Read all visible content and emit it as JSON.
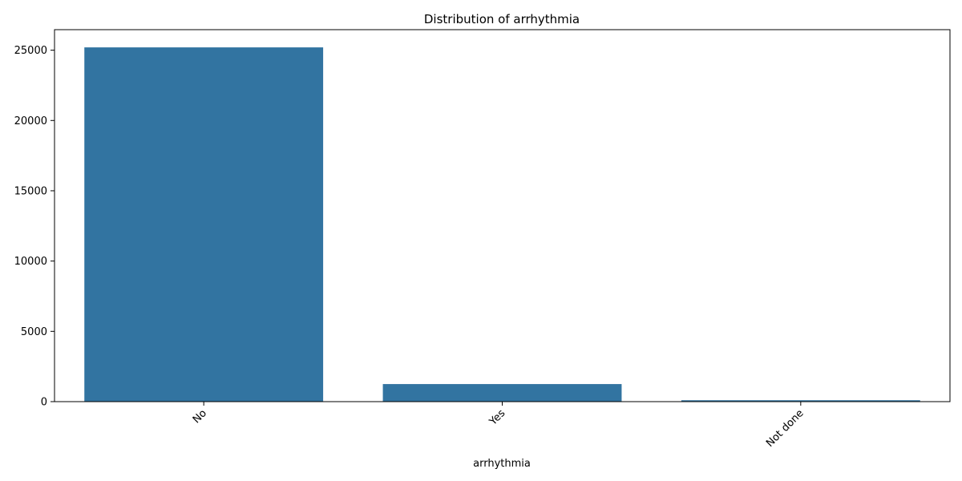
{
  "chart_data": {
    "type": "bar",
    "title": "Distribution of arrhythmia",
    "xlabel": "arrhythmia",
    "ylabel": "",
    "categories": [
      "No",
      "Yes",
      "Not done"
    ],
    "values": [
      25200,
      1250,
      100
    ],
    "ylim": [
      0,
      26460
    ],
    "yticks": [
      0,
      5000,
      10000,
      15000,
      20000,
      25000
    ],
    "grid": false,
    "bar_color": "#3274a1"
  }
}
